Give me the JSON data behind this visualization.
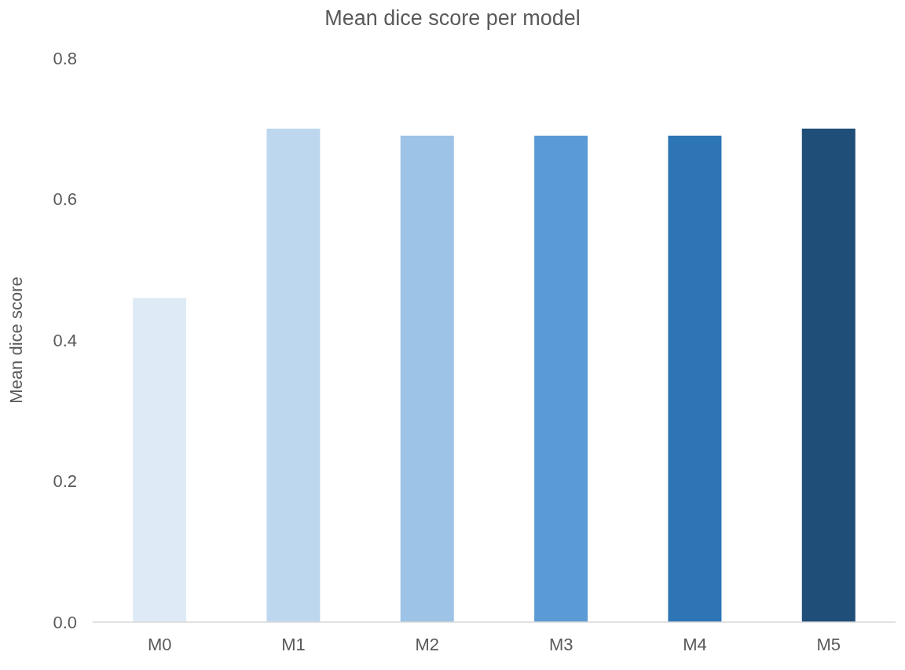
{
  "chart_data": {
    "type": "bar",
    "title": "Mean dice score per model",
    "ylabel": "Mean dice score",
    "categories": [
      "M0",
      "M1",
      "M2",
      "M3",
      "M4",
      "M5"
    ],
    "values": [
      0.46,
      0.7,
      0.69,
      0.69,
      0.69,
      0.7
    ],
    "colors": [
      "#deebf7",
      "#bdd7ee",
      "#9dc3e6",
      "#5b9bd5",
      "#2e75b6",
      "#1f4e79"
    ],
    "ylim": [
      0,
      0.8
    ],
    "yticks": [
      {
        "value": 0,
        "label": "0.0"
      },
      0.2,
      0.4,
      0.6,
      0.8
    ],
    "grid": false,
    "legend": false
  }
}
